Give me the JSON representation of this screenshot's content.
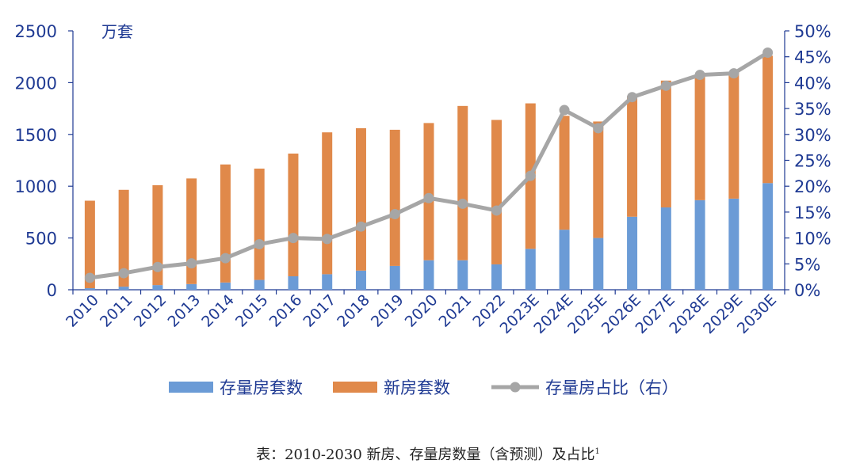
{
  "chart_data": {
    "type": "bar",
    "stacked": true,
    "unit_label": "万套",
    "categories": [
      "2010",
      "2011",
      "2012",
      "2013",
      "2014",
      "2015",
      "2016",
      "2017",
      "2018",
      "2019",
      "2020",
      "2021",
      "2022",
      "2023E",
      "2024E",
      "2025E",
      "2026E",
      "2027E",
      "2028E",
      "2029E",
      "2030E"
    ],
    "series": [
      {
        "name": "存量房套数",
        "type": "bar",
        "axis": "left",
        "color": "#6b9bd6",
        "values": [
          15,
          30,
          45,
          55,
          70,
          95,
          130,
          150,
          185,
          230,
          285,
          285,
          245,
          395,
          580,
          500,
          705,
          795,
          865,
          880,
          1030
        ]
      },
      {
        "name": "新房套数",
        "type": "bar",
        "axis": "left",
        "color": "#e0894a",
        "values": [
          845,
          935,
          965,
          1020,
          1140,
          1075,
          1185,
          1370,
          1375,
          1315,
          1325,
          1490,
          1395,
          1405,
          1100,
          1125,
          1165,
          1225,
          1205,
          1220,
          1230
        ]
      },
      {
        "name": "存量房占比（右）",
        "type": "line",
        "axis": "right",
        "color": "#a6a6a6",
        "values": [
          2.3,
          3.2,
          4.4,
          5.1,
          6.1,
          8.8,
          10.0,
          9.8,
          12.2,
          14.6,
          17.7,
          16.6,
          15.3,
          22.0,
          34.7,
          31.2,
          37.2,
          39.4,
          41.5,
          41.8,
          45.8
        ]
      }
    ],
    "y_left": {
      "min": 0,
      "max": 2500,
      "ticks": [
        "0",
        "500",
        "1000",
        "1500",
        "2000",
        "2500"
      ],
      "tick_values": [
        0,
        500,
        1000,
        1500,
        2000,
        2500
      ]
    },
    "y_right": {
      "min": 0,
      "max": 50,
      "ticks": [
        "0%",
        "5%",
        "10%",
        "15%",
        "20%",
        "25%",
        "30%",
        "35%",
        "40%",
        "45%",
        "50%"
      ],
      "tick_values": [
        0,
        5,
        10,
        15,
        20,
        25,
        30,
        35,
        40,
        45,
        50
      ]
    },
    "grid": false,
    "legend_position": "bottom",
    "axis_color": "#1f3a93",
    "tick_label_color": "#1f3a93"
  },
  "caption": {
    "text": "表：2010-2030 新房、存量房数量（含预测）及占比",
    "footnote_mark": "1"
  }
}
